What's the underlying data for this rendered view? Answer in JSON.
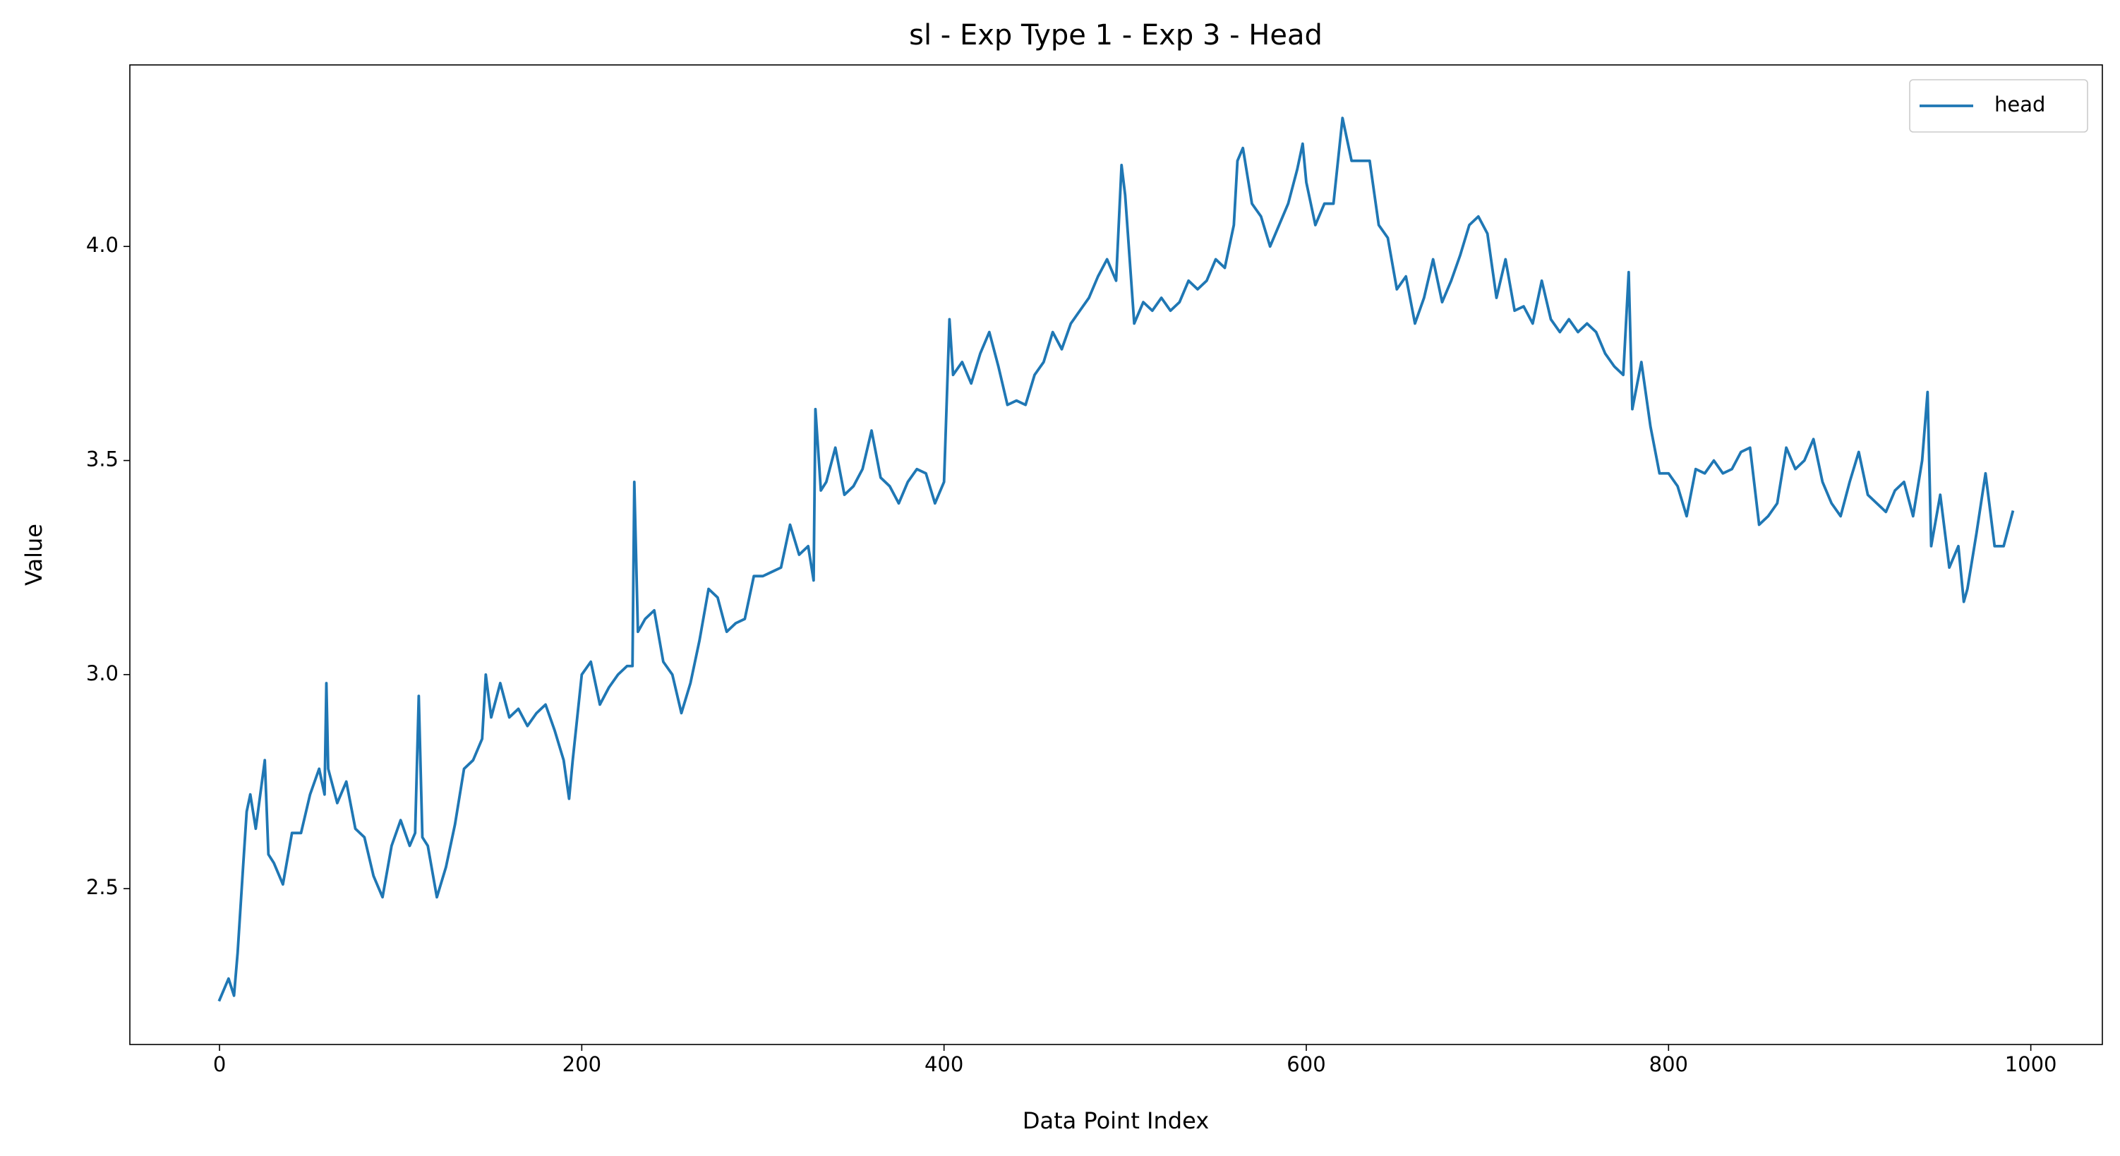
{
  "chart_data": {
    "type": "line",
    "title": "sl - Exp Type 1 - Exp 3 - Head",
    "xlabel": "Data Point Index",
    "ylabel": "Value",
    "x": [
      0,
      5,
      8,
      10,
      13,
      15,
      17,
      20,
      25,
      27,
      30,
      35,
      40,
      45,
      50,
      55,
      58,
      59,
      60,
      65,
      70,
      75,
      80,
      85,
      90,
      95,
      100,
      105,
      108,
      110,
      112,
      115,
      120,
      125,
      130,
      135,
      140,
      145,
      147,
      150,
      155,
      160,
      165,
      170,
      175,
      180,
      185,
      190,
      193,
      195,
      200,
      205,
      210,
      215,
      220,
      225,
      228,
      229,
      231,
      235,
      240,
      245,
      250,
      255,
      260,
      265,
      270,
      275,
      280,
      285,
      290,
      295,
      300,
      305,
      310,
      315,
      320,
      325,
      328,
      329,
      332,
      335,
      340,
      345,
      350,
      355,
      360,
      365,
      370,
      375,
      380,
      385,
      390,
      395,
      400,
      403,
      405,
      410,
      415,
      420,
      425,
      430,
      435,
      440,
      445,
      450,
      455,
      460,
      465,
      470,
      475,
      480,
      485,
      490,
      495,
      498,
      500,
      505,
      510,
      515,
      520,
      525,
      530,
      535,
      540,
      545,
      550,
      555,
      560,
      562,
      565,
      570,
      575,
      580,
      585,
      590,
      595,
      598,
      600,
      605,
      610,
      615,
      620,
      625,
      630,
      635,
      640,
      645,
      650,
      655,
      660,
      665,
      670,
      675,
      680,
      685,
      690,
      695,
      700,
      705,
      710,
      715,
      720,
      725,
      730,
      735,
      740,
      745,
      750,
      755,
      760,
      765,
      770,
      775,
      778,
      780,
      785,
      790,
      795,
      800,
      805,
      810,
      815,
      820,
      825,
      830,
      835,
      840,
      845,
      850,
      855,
      860,
      865,
      870,
      875,
      880,
      885,
      890,
      895,
      900,
      905,
      910,
      915,
      920,
      925,
      930,
      935,
      940,
      943,
      945,
      950,
      955,
      960,
      963,
      965,
      970,
      975,
      980,
      985,
      990
    ],
    "series": [
      {
        "name": "head",
        "color": "#1f77b4",
        "values": [
          2.24,
          2.29,
          2.25,
          2.35,
          2.55,
          2.68,
          2.72,
          2.64,
          2.8,
          2.58,
          2.56,
          2.51,
          2.63,
          2.63,
          2.72,
          2.78,
          2.72,
          2.98,
          2.78,
          2.7,
          2.75,
          2.64,
          2.62,
          2.53,
          2.48,
          2.6,
          2.66,
          2.6,
          2.63,
          2.95,
          2.62,
          2.6,
          2.48,
          2.55,
          2.65,
          2.78,
          2.8,
          2.85,
          3.0,
          2.9,
          2.98,
          2.9,
          2.92,
          2.88,
          2.91,
          2.93,
          2.87,
          2.8,
          2.71,
          2.8,
          3.0,
          3.03,
          2.93,
          2.97,
          3.0,
          3.02,
          3.02,
          3.45,
          3.1,
          3.13,
          3.15,
          3.03,
          3.0,
          2.91,
          2.98,
          3.08,
          3.2,
          3.18,
          3.1,
          3.12,
          3.13,
          3.23,
          3.23,
          3.24,
          3.25,
          3.35,
          3.28,
          3.3,
          3.22,
          3.62,
          3.43,
          3.45,
          3.53,
          3.42,
          3.44,
          3.48,
          3.57,
          3.46,
          3.44,
          3.4,
          3.45,
          3.48,
          3.47,
          3.4,
          3.45,
          3.83,
          3.7,
          3.73,
          3.68,
          3.75,
          3.8,
          3.72,
          3.63,
          3.64,
          3.63,
          3.7,
          3.73,
          3.8,
          3.76,
          3.82,
          3.85,
          3.88,
          3.93,
          3.97,
          3.92,
          4.19,
          4.12,
          3.82,
          3.87,
          3.85,
          3.88,
          3.85,
          3.87,
          3.92,
          3.9,
          3.92,
          3.97,
          3.95,
          4.05,
          4.2,
          4.23,
          4.1,
          4.07,
          4.0,
          4.05,
          4.1,
          4.18,
          4.24,
          4.15,
          4.05,
          4.1,
          4.1,
          4.3,
          4.2,
          4.2,
          4.2,
          4.05,
          4.02,
          3.9,
          3.93,
          3.82,
          3.88,
          3.97,
          3.87,
          3.92,
          3.98,
          4.05,
          4.07,
          4.03,
          3.88,
          3.97,
          3.85,
          3.86,
          3.82,
          3.92,
          3.83,
          3.8,
          3.83,
          3.8,
          3.82,
          3.8,
          3.75,
          3.72,
          3.7,
          3.94,
          3.62,
          3.73,
          3.58,
          3.47,
          3.47,
          3.44,
          3.37,
          3.48,
          3.47,
          3.5,
          3.47,
          3.48,
          3.52,
          3.53,
          3.35,
          3.37,
          3.4,
          3.53,
          3.48,
          3.5,
          3.55,
          3.45,
          3.4,
          3.37,
          3.45,
          3.52,
          3.42,
          3.4,
          3.38,
          3.43,
          3.45,
          3.37,
          3.5,
          3.66,
          3.3,
          3.42,
          3.25,
          3.3,
          3.17,
          3.2,
          3.33,
          3.47,
          3.3,
          3.3,
          3.38
        ]
      }
    ],
    "xlim": [
      -49.5,
      1039.5
    ],
    "ylim": [
      2.136,
      4.424
    ],
    "xticks": [
      0,
      200,
      400,
      600,
      800,
      1000
    ],
    "yticks": [
      2.5,
      {
        "value": 3,
        "label": "3.0"
      },
      3.5,
      {
        "value": 4,
        "label": "4.0"
      }
    ],
    "legend": "upper right"
  }
}
